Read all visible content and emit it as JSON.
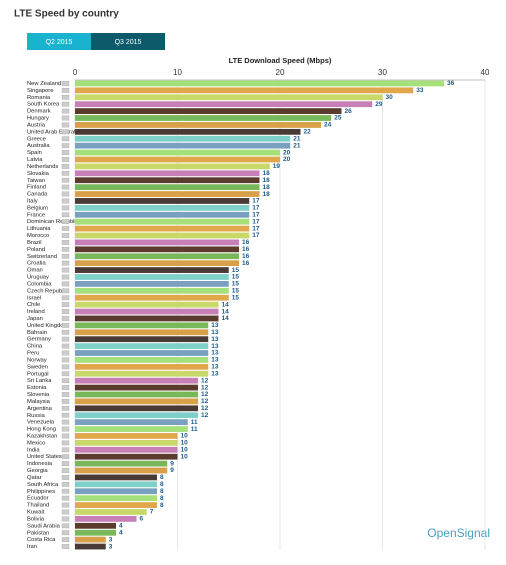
{
  "header": {
    "title": "LTE Speed by country",
    "tabs": [
      "Q2 2015",
      "Q3 2015"
    ]
  },
  "chart_data": {
    "type": "hbar",
    "title": "LTE Download Speed (Mbps)",
    "orientation": "horizontal",
    "categories": [
      "New Zealand",
      "Singapore",
      "Romania",
      "South Korea",
      "Denmark",
      "Hungary",
      "Austria",
      "United Arab Emirates",
      "Greece",
      "Australia",
      "Spain",
      "Latvia",
      "Netherlands",
      "Slovakia",
      "Taiwan",
      "Finland",
      "Canada",
      "Italy",
      "Belgium",
      "France",
      "Dominican Republic",
      "Lithuania",
      "Morocco",
      "Brazil",
      "Poland",
      "Switzerland",
      "Croatia",
      "Oman",
      "Uruguay",
      "Colombia",
      "Czech Republic",
      "Israel",
      "Chile",
      "Ireland",
      "Japan",
      "United Kingdom",
      "Bahrain",
      "Germany",
      "China",
      "Peru",
      "Norway",
      "Sweden",
      "Portugal",
      "Sri Lanka",
      "Estonia",
      "Slovenia",
      "Malaysia",
      "Argentina",
      "Russia",
      "Venezuela",
      "Hong Kong",
      "Kazakhstan",
      "Mexico",
      "India",
      "United States",
      "Indonesia",
      "Georgia",
      "Qatar",
      "South Africa",
      "Philippines",
      "Ecuador",
      "Thailand",
      "Kuwait",
      "Bolivia",
      "Saudi Arabia",
      "Pakistan",
      "Costa Rica",
      "Iran"
    ],
    "values": [
      36,
      33,
      30,
      29,
      26,
      25,
      24,
      22,
      21,
      21,
      20,
      20,
      19,
      18,
      18,
      18,
      18,
      17,
      17,
      17,
      17,
      17,
      17,
      16,
      16,
      16,
      16,
      15,
      15,
      15,
      15,
      15,
      14,
      14,
      14,
      13,
      13,
      13,
      13,
      13,
      13,
      13,
      13,
      12,
      12,
      12,
      12,
      12,
      12,
      11,
      11,
      10,
      10,
      10,
      10,
      9,
      9,
      8,
      8,
      8,
      8,
      8,
      7,
      6,
      4,
      4,
      3,
      3
    ],
    "palette": [
      "#a6e07a",
      "#e0a84a",
      "#c8d96a",
      "#c77fb8",
      "#5a3b2e",
      "#78b85a",
      "#d9a04a",
      "#4a3a35",
      "#7fd0c8",
      "#7aa0c0"
    ],
    "xlim": [
      0,
      40
    ],
    "xticks": [
      0,
      10,
      20,
      30,
      40
    ],
    "grid": true,
    "value_label_color": "#1a5a8a",
    "logo": "OpenSignal"
  }
}
